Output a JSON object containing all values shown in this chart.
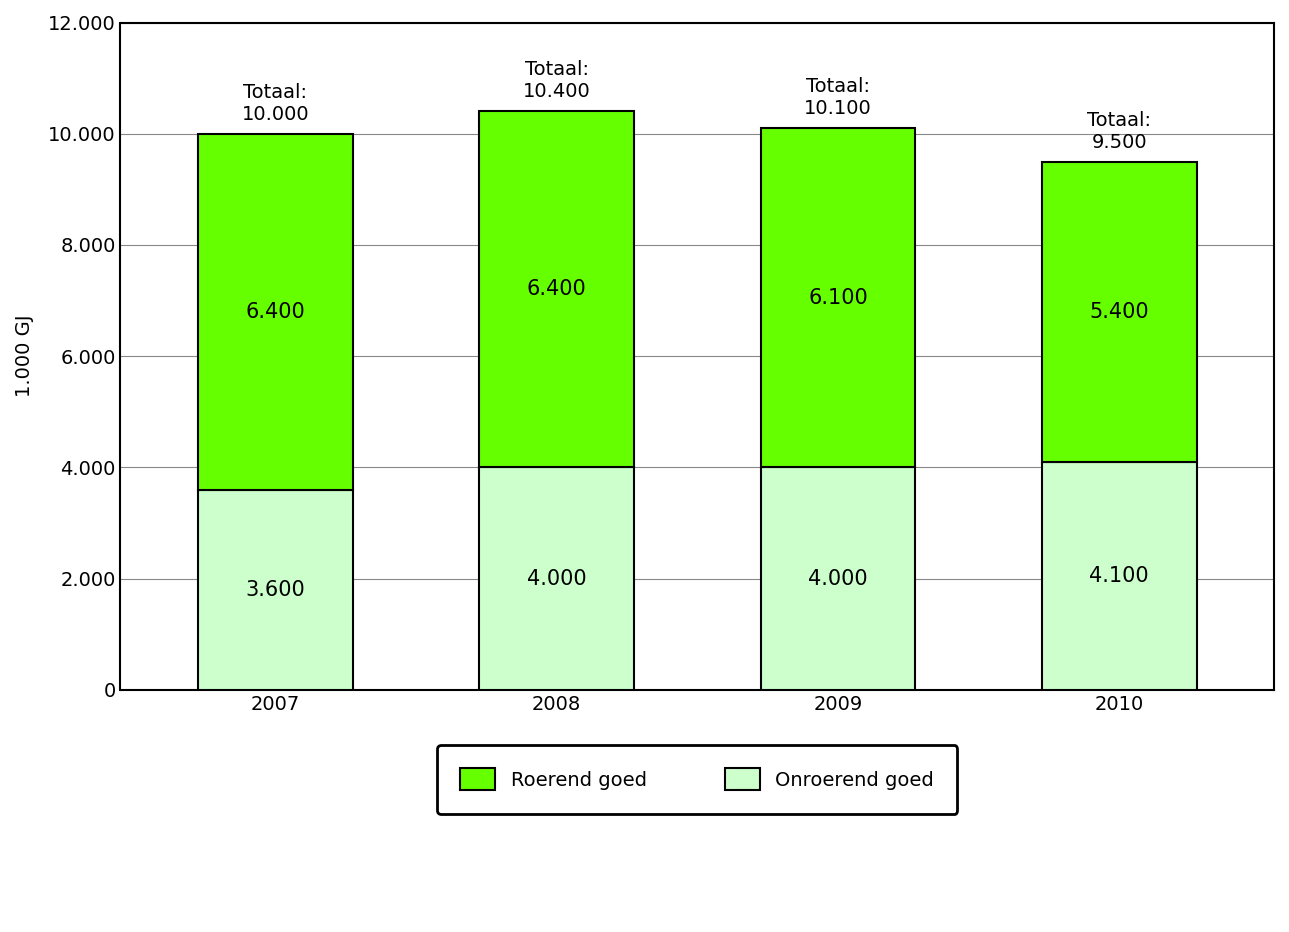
{
  "years": [
    "2007",
    "2008",
    "2009",
    "2010"
  ],
  "roerend": [
    6400,
    6400,
    6100,
    5400
  ],
  "onroerend": [
    3600,
    4000,
    4000,
    4100
  ],
  "totals": [
    "10.000",
    "10.400",
    "10.100",
    "9.500"
  ],
  "roerend_labels": [
    "6.400",
    "6.400",
    "6.100",
    "5.400"
  ],
  "onroerend_labels": [
    "3.600",
    "4.000",
    "4.000",
    "4.100"
  ],
  "color_roerend": "#66ff00",
  "color_onroerend": "#ccffcc",
  "ylabel": "1.000 GJ",
  "ylim": [
    0,
    12000
  ],
  "yticks": [
    0,
    2000,
    4000,
    6000,
    8000,
    10000,
    12000
  ],
  "ytick_labels": [
    "0",
    "2.000",
    "4.000",
    "6.000",
    "8.000",
    "10.000",
    "12.000"
  ],
  "legend_roerend": "Roerend goed",
  "legend_onroerend": "Onroerend goed",
  "bar_width": 0.55,
  "background_color": "#ffffff",
  "border_color": "#000000",
  "grid_color": "#888888",
  "label_fontsize": 15,
  "tick_fontsize": 14,
  "total_fontsize": 14
}
